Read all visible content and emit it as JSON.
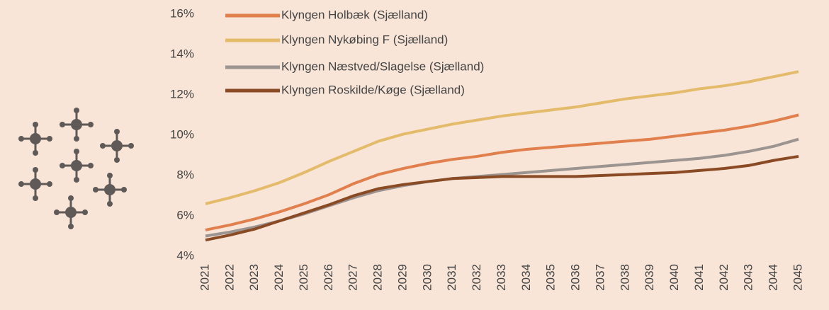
{
  "chart_data": {
    "type": "line",
    "x": [
      "2021",
      "2022",
      "2023",
      "2024",
      "2025",
      "2026",
      "2027",
      "2028",
      "2029",
      "2030",
      "2031",
      "2032",
      "2033",
      "2034",
      "2035",
      "2036",
      "2037",
      "2038",
      "2039",
      "2040",
      "2041",
      "2042",
      "2043",
      "2044",
      "2045"
    ],
    "series": [
      {
        "name": "Klyngen Holbæk (Sjælland)",
        "color": "#e2804d",
        "values": [
          5.3,
          5.55,
          5.85,
          6.2,
          6.6,
          7.05,
          7.6,
          8.05,
          8.35,
          8.6,
          8.8,
          8.95,
          9.15,
          9.3,
          9.4,
          9.5,
          9.6,
          9.7,
          9.8,
          9.95,
          10.1,
          10.25,
          10.45,
          10.7,
          11.0
        ]
      },
      {
        "name": "Klyngen Nykøbing F (Sjælland)",
        "color": "#e3bb6a",
        "values": [
          6.6,
          6.9,
          7.25,
          7.65,
          8.15,
          8.7,
          9.2,
          9.7,
          10.05,
          10.3,
          10.55,
          10.75,
          10.95,
          11.1,
          11.25,
          11.4,
          11.6,
          11.8,
          11.95,
          12.1,
          12.3,
          12.45,
          12.65,
          12.9,
          13.15
        ]
      },
      {
        "name": "Klyngen Næstved/Slagelse (Sjælland)",
        "color": "#9c9490",
        "values": [
          5.0,
          5.2,
          5.45,
          5.75,
          6.1,
          6.5,
          6.9,
          7.25,
          7.5,
          7.7,
          7.85,
          7.95,
          8.05,
          8.15,
          8.25,
          8.35,
          8.45,
          8.55,
          8.65,
          8.75,
          8.85,
          9.0,
          9.2,
          9.45,
          9.8
        ]
      },
      {
        "name": "Klyngen Roskilde/Køge (Sjælland)",
        "color": "#8a4a24",
        "values": [
          4.8,
          5.05,
          5.35,
          5.75,
          6.15,
          6.55,
          7.0,
          7.35,
          7.55,
          7.7,
          7.85,
          7.9,
          7.95,
          7.95,
          7.95,
          7.95,
          8.0,
          8.05,
          8.1,
          8.15,
          8.25,
          8.35,
          8.5,
          8.75,
          8.95
        ]
      }
    ],
    "ylim": [
      4,
      16
    ],
    "yticks": [
      {
        "value": 4,
        "label": "4%"
      },
      {
        "value": 6,
        "label": "6%"
      },
      {
        "value": 8,
        "label": "8%"
      },
      {
        "value": 10,
        "label": "10%"
      },
      {
        "value": 12,
        "label": "12%"
      },
      {
        "value": 14,
        "label": "14%"
      },
      {
        "value": 16,
        "label": "16%"
      }
    ],
    "grid": false,
    "legend": "top"
  }
}
